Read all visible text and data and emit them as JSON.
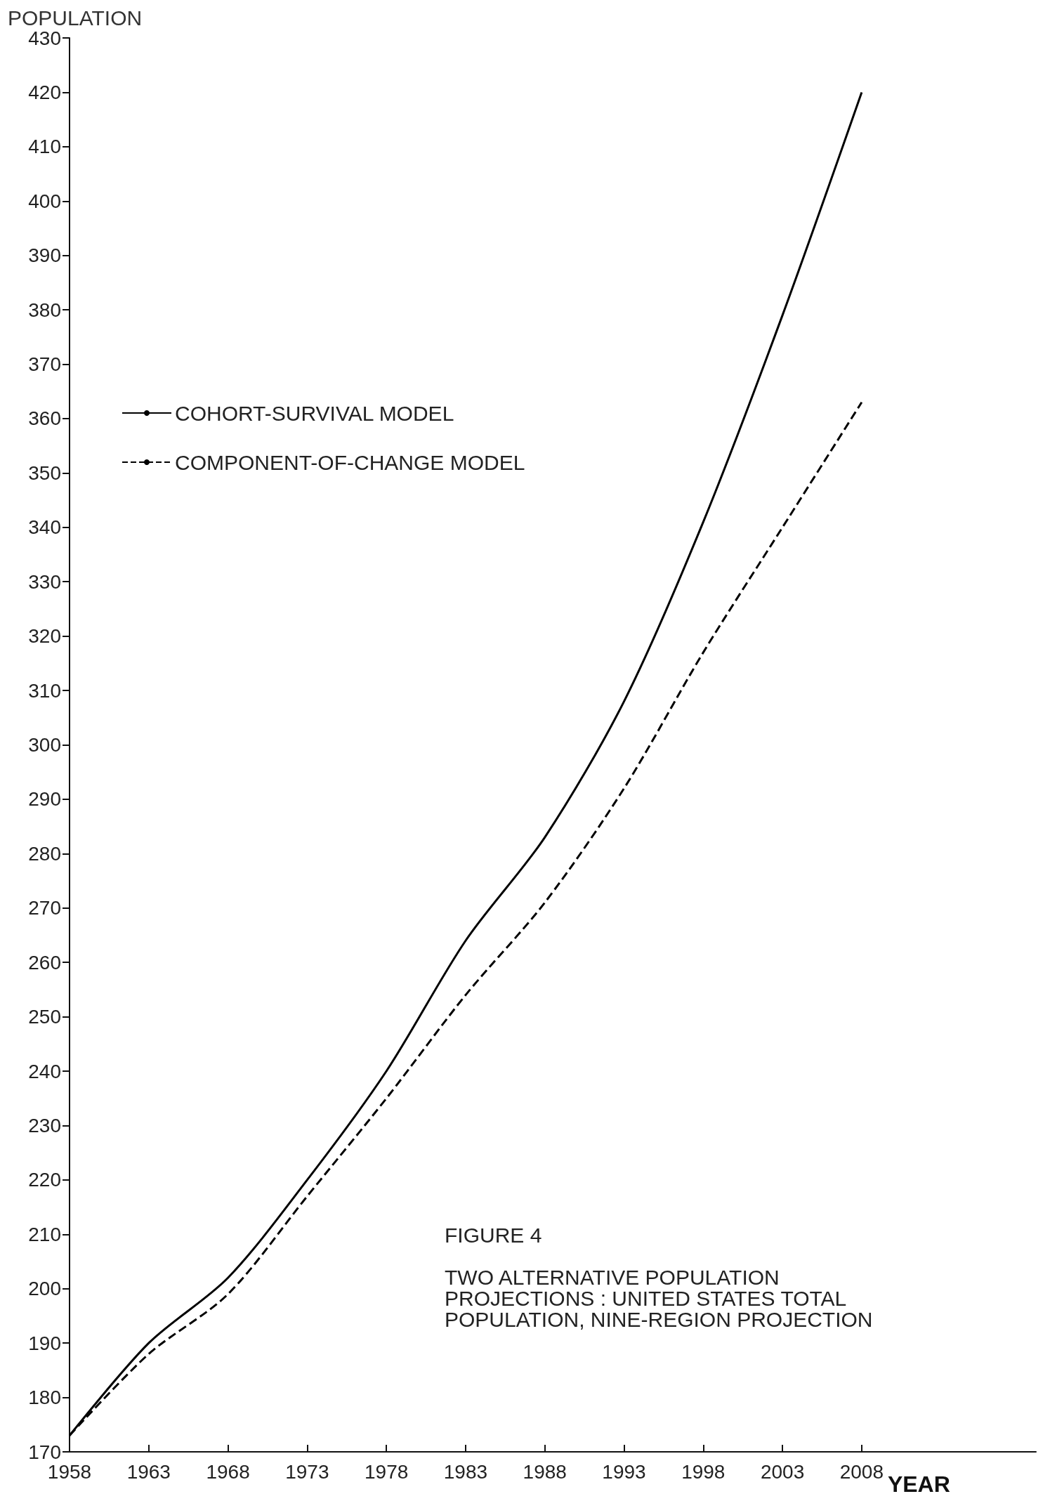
{
  "chart_data": {
    "type": "line",
    "title": "FIGURE 4",
    "subtitle": "TWO ALTERNATIVE POPULATION\nPROJECTIONS : UNITED STATES TOTAL\nPOPULATION, NINE-REGION PROJECTION",
    "xlabel": "YEAR",
    "ylabel": "POPULATION",
    "x": [
      1958,
      1963,
      1968,
      1973,
      1978,
      1983,
      1988,
      1993,
      1998,
      2003,
      2008
    ],
    "series": [
      {
        "name": "COHORT-SURVIVAL MODEL",
        "color": "#000000",
        "line_style": "solid",
        "values": [
          173,
          190,
          202,
          220,
          240,
          264,
          283,
          308,
          341,
          379,
          420
        ]
      },
      {
        "name": "COMPONENT-OF-CHANGE MODEL",
        "color": "#000000",
        "line_style": "dashed",
        "values": [
          173,
          188,
          199,
          217,
          235,
          254,
          271,
          292,
          317,
          340,
          363
        ]
      }
    ],
    "xlim": [
      1958,
      2019
    ],
    "xticks": [
      1958,
      1963,
      1968,
      1973,
      1978,
      1983,
      1988,
      1993,
      1998,
      2003,
      2008
    ],
    "ylim": [
      170,
      430
    ],
    "yticks": [
      170,
      180,
      190,
      200,
      210,
      220,
      230,
      240,
      250,
      260,
      270,
      280,
      290,
      300,
      310,
      320,
      330,
      340,
      350,
      360,
      370,
      380,
      390,
      400,
      410,
      420,
      430
    ],
    "grid": false,
    "legend": "top left",
    "marker": "none"
  }
}
